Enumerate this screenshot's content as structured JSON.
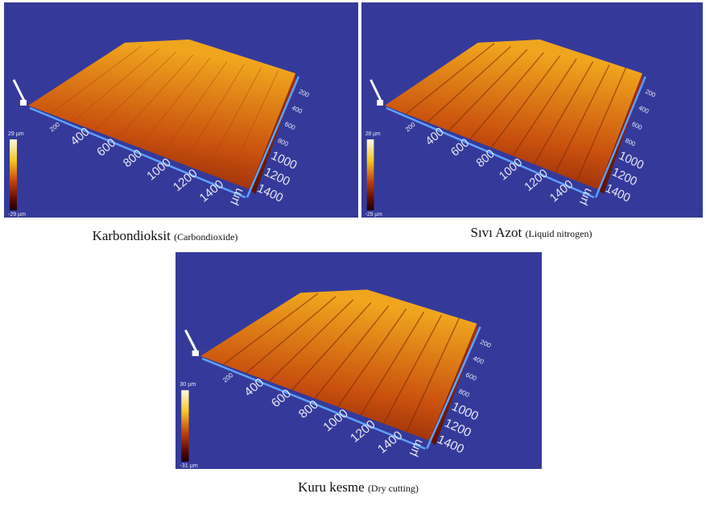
{
  "panels": [
    {
      "colorbar": {
        "max": "29 µm",
        "min": "-29 µm"
      },
      "x_ticks": [
        "200",
        "400",
        "600",
        "800",
        "1000",
        "1200",
        "1400"
      ],
      "x_unit": "µm",
      "y_ticks": [
        "200",
        "400",
        "600",
        "800",
        "1000",
        "1200",
        "1400"
      ],
      "caption": {
        "name": "Karbondioksit",
        "translation": "(Carbondioxide)"
      }
    },
    {
      "colorbar": {
        "max": "28 µm",
        "min": "-29 µm"
      },
      "x_ticks": [
        "200",
        "400",
        "600",
        "800",
        "1000",
        "1200",
        "1400"
      ],
      "x_unit": "µm",
      "y_ticks": [
        "200",
        "400",
        "600",
        "800",
        "1000",
        "1200",
        "1400"
      ],
      "caption": {
        "name": "Sıvı Azot",
        "translation": "(Liquid nitrogen)"
      }
    },
    {
      "colorbar": {
        "max": "30 µm",
        "min": "-31 µm"
      },
      "x_ticks": [
        "200",
        "400",
        "600",
        "800",
        "1000",
        "1200",
        "1400"
      ],
      "x_unit": "µm",
      "y_ticks": [
        "200",
        "400",
        "600",
        "800",
        "1000",
        "1200",
        "1400"
      ],
      "caption": {
        "name": "Kuru kesme",
        "translation": "(Dry cutting)"
      }
    }
  ]
}
